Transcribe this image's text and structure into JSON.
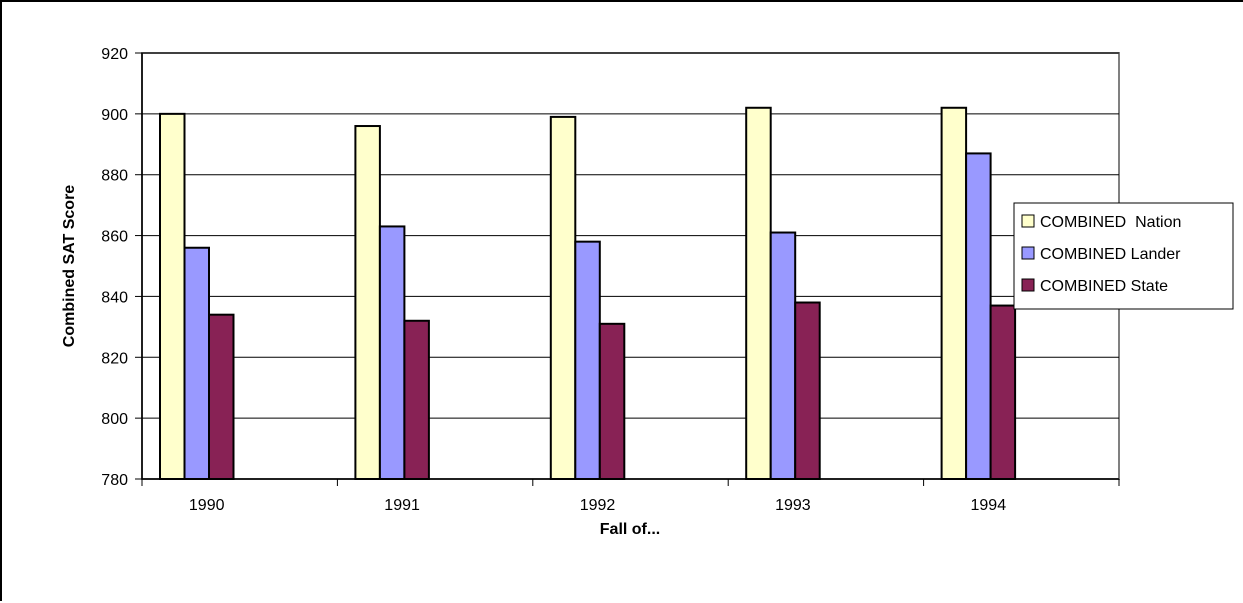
{
  "chart_data": {
    "type": "bar",
    "title": "",
    "xlabel": "Fall of...",
    "ylabel": "Combined SAT Score",
    "categories": [
      "1990",
      "1991",
      "1992",
      "1993",
      "1994"
    ],
    "ylim": [
      780,
      920
    ],
    "yticks": [
      780,
      800,
      820,
      840,
      860,
      880,
      900,
      920
    ],
    "grid": true,
    "legend_position": "right",
    "series": [
      {
        "name": "COMBINED  Nation",
        "values": [
          900,
          896,
          899,
          902,
          902
        ],
        "color": "#ffffcc"
      },
      {
        "name": "COMBINED Lander",
        "values": [
          856,
          863,
          858,
          861,
          887
        ],
        "color": "#9999ff"
      },
      {
        "name": "COMBINED State",
        "values": [
          834,
          832,
          831,
          838,
          837
        ],
        "color": "#882255"
      }
    ]
  }
}
